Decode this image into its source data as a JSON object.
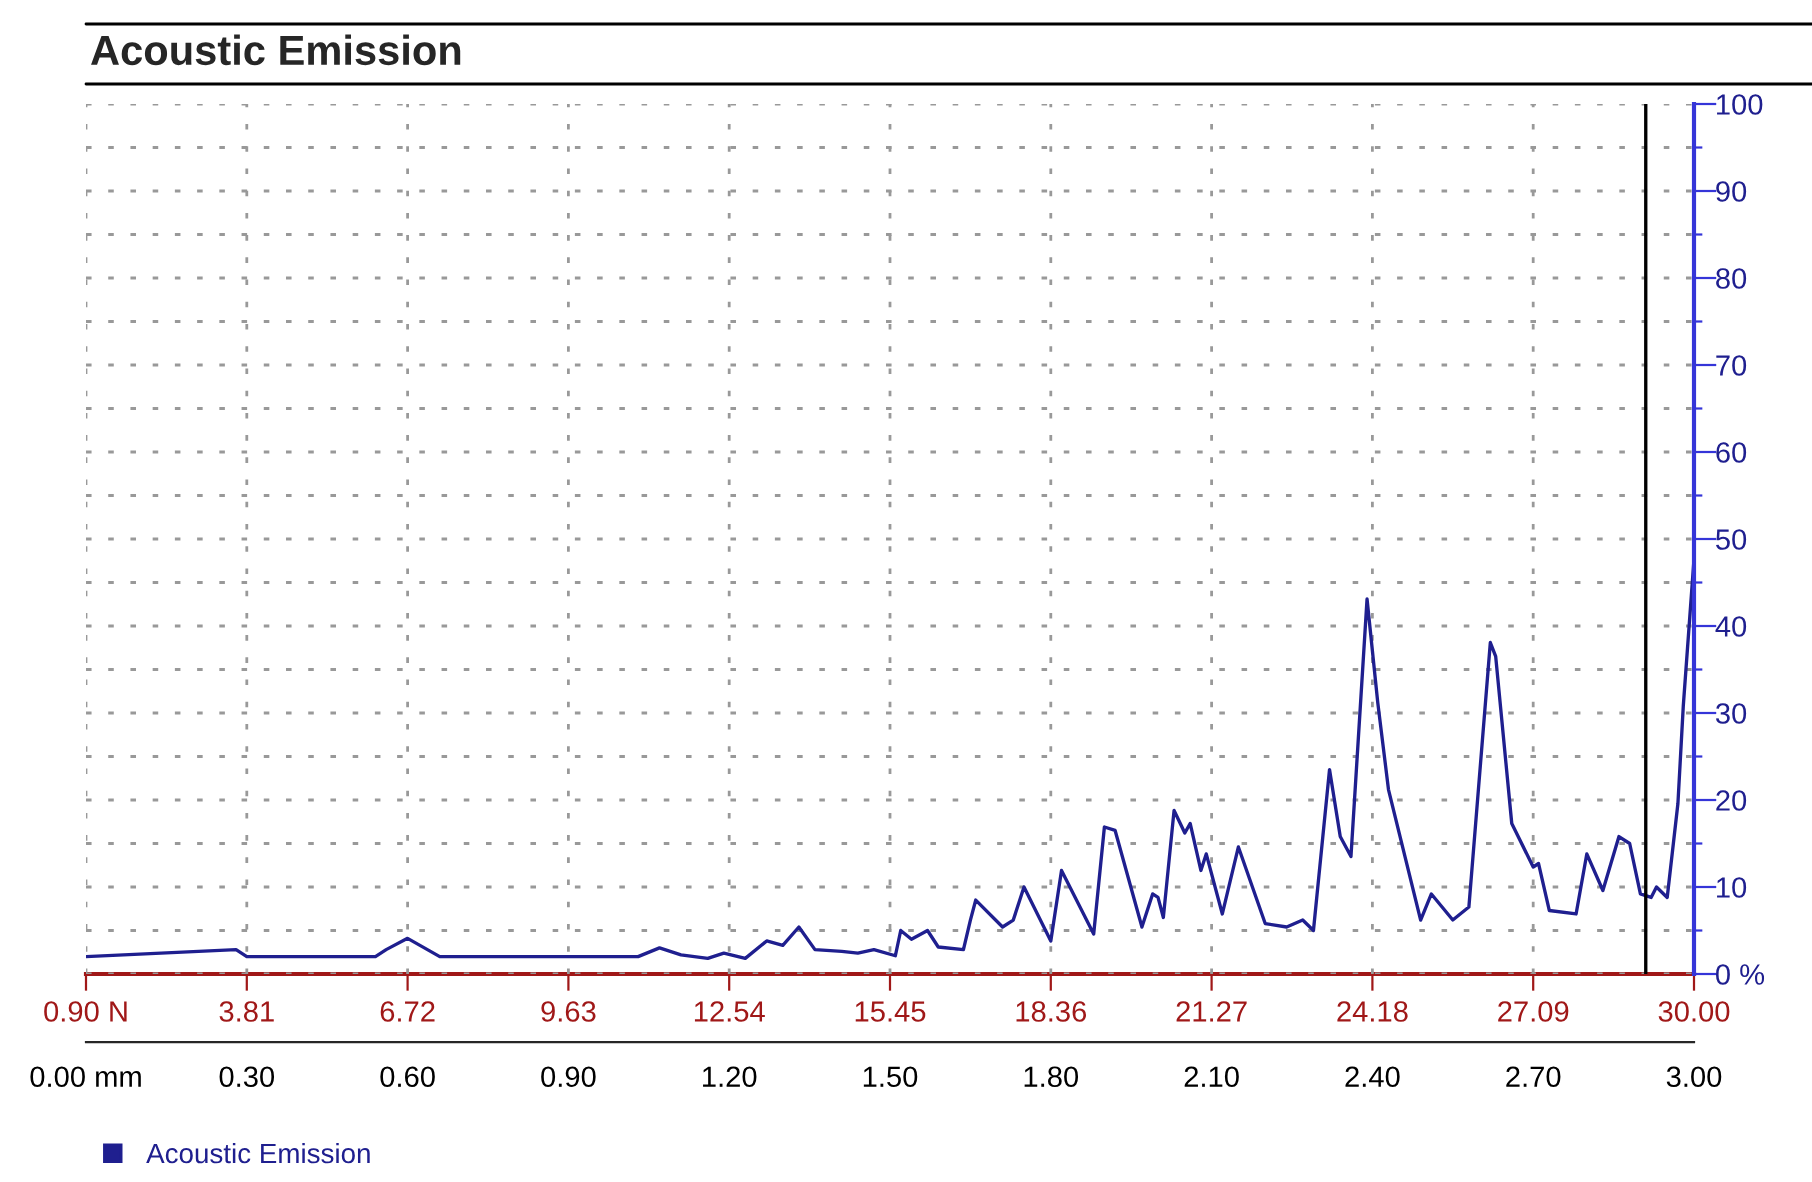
{
  "chart_data": {
    "type": "line",
    "title": "Acoustic Emission",
    "x": [
      0,
      0.28,
      0.3,
      0.54,
      0.56,
      0.6,
      0.66,
      1.03,
      1.07,
      1.11,
      1.16,
      1.19,
      1.23,
      1.27,
      1.3,
      1.33,
      1.36,
      1.41,
      1.44,
      1.47,
      1.51,
      1.52,
      1.54,
      1.57,
      1.59,
      1.637,
      1.65,
      1.66,
      1.71,
      1.73,
      1.75,
      1.8,
      1.82,
      1.88,
      1.9,
      1.92,
      1.97,
      1.99,
      2.0,
      2.01,
      2.03,
      2.05,
      2.06,
      2.08,
      2.09,
      2.12,
      2.15,
      2.2,
      2.24,
      2.27,
      2.29,
      2.32,
      2.34,
      2.36,
      2.39,
      2.41,
      2.43,
      2.49,
      2.51,
      2.55,
      2.58,
      2.62,
      2.63,
      2.66,
      2.7,
      2.71,
      2.73,
      2.78,
      2.8,
      2.83,
      2.86,
      2.88,
      2.9,
      2.92,
      2.93,
      2.95,
      2.97,
      2.98,
      3.0
    ],
    "series": [
      {
        "name": "Acoustic Emission",
        "color": "#1f1f8f",
        "values": [
          2,
          2.8,
          2,
          2,
          2.8,
          4.1,
          2,
          2,
          3,
          2.2,
          1.8,
          2.4,
          1.8,
          3.8,
          3.3,
          5.4,
          2.8,
          2.6,
          2.4,
          2.8,
          2.1,
          5.0,
          4.0,
          5.0,
          3.1,
          2.8,
          6.2,
          8.5,
          5.4,
          6.2,
          10,
          3.8,
          11.9,
          4.6,
          16.9,
          16.5,
          5.4,
          9.2,
          8.8,
          6.5,
          18.8,
          16.2,
          17.3,
          11.9,
          13.8,
          6.9,
          14.6,
          5.8,
          5.4,
          6.2,
          5.0,
          23.5,
          15.8,
          13.5,
          43.1,
          31.2,
          21.2,
          6.2,
          9.2,
          6.2,
          7.7,
          38.1,
          36.5,
          17.3,
          12.3,
          12.7,
          7.3,
          6.9,
          13.8,
          9.6,
          15.8,
          15.0,
          9.2,
          8.8,
          10,
          8.8,
          19.6,
          30.8,
          47.7
        ]
      }
    ],
    "xlim": [
      0,
      3.0
    ],
    "xticks": [
      {
        "value": 0,
        "label": "0.00 mm"
      },
      {
        "value": 0.3,
        "label": "0.30"
      },
      {
        "value": 0.6,
        "label": "0.60"
      },
      {
        "value": 0.9,
        "label": "0.90"
      },
      {
        "value": 1.2,
        "label": "1.20"
      },
      {
        "value": 1.5,
        "label": "1.50"
      },
      {
        "value": 1.8,
        "label": "1.80"
      },
      {
        "value": 2.1,
        "label": "2.10"
      },
      {
        "value": 2.4,
        "label": "2.40"
      },
      {
        "value": 2.7,
        "label": "2.70"
      },
      {
        "value": 3.0,
        "label": "3.00"
      }
    ],
    "x2lim": [
      0.9,
      30.0
    ],
    "x2ticks": [
      {
        "value": 0.9,
        "label": "0.90 N"
      },
      3.81,
      6.72,
      9.63,
      12.54,
      15.45,
      18.36,
      21.27,
      24.18,
      27.09,
      {
        "value": 30.0,
        "label": "30.00"
      }
    ],
    "ylim": [
      0,
      100
    ],
    "yticks": [
      {
        "value": 0,
        "label": "0 %"
      },
      {
        "value": 5,
        "label": null
      },
      10,
      {
        "value": 15,
        "label": null
      },
      20,
      {
        "value": 25,
        "label": null
      },
      30,
      {
        "value": 35,
        "label": null
      },
      40,
      {
        "value": 45,
        "label": null
      },
      50,
      {
        "value": 55,
        "label": null
      },
      60,
      {
        "value": 65,
        "label": null
      },
      70,
      {
        "value": 75,
        "label": null
      },
      80,
      {
        "value": 85,
        "label": null
      },
      90,
      {
        "value": 95,
        "label": null
      },
      100
    ],
    "ref_lines": [
      {
        "axis": "x",
        "value": 2.91,
        "color": "#000000"
      }
    ],
    "grid": true,
    "legend": "bottom left",
    "marker": "none",
    "line_style": "solid"
  }
}
